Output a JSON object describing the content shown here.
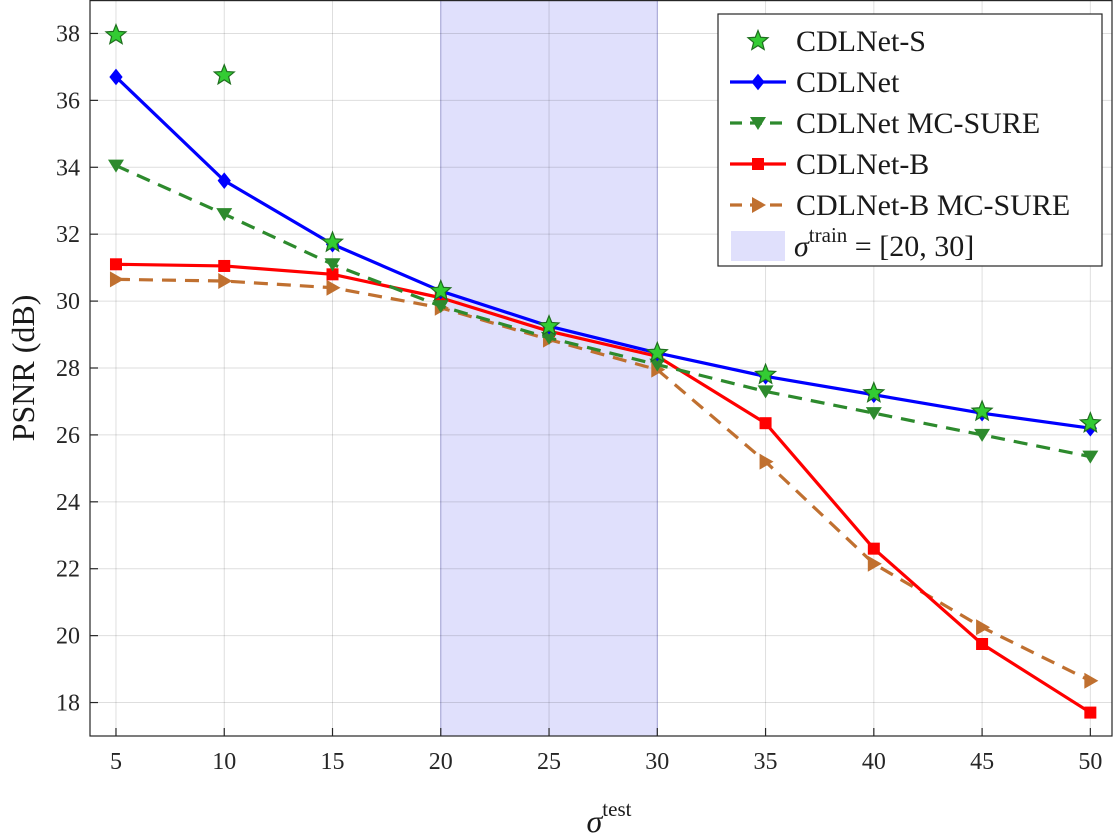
{
  "chart_data": {
    "type": "line",
    "x": [
      5,
      10,
      15,
      20,
      25,
      30,
      35,
      40,
      45,
      50
    ],
    "xlim": [
      3.8,
      51
    ],
    "ylim": [
      17,
      39
    ],
    "xticks": [
      5,
      10,
      15,
      20,
      25,
      30,
      35,
      40,
      45,
      50
    ],
    "yticks": [
      18,
      20,
      22,
      24,
      26,
      28,
      30,
      32,
      34,
      36,
      38
    ],
    "grid": true,
    "legend_position": "top-right",
    "xlabel": {
      "symbol": "σ",
      "sup": "test"
    },
    "ylabel": "PSNR (dB)",
    "shaded_region": {
      "x_range": [
        20,
        30
      ],
      "color": "#e0e0fc",
      "edge_color": "#b4b4f0",
      "label_symbol": "σ",
      "label_sup": "train",
      "label_rest": " = [20, 30]"
    },
    "series": [
      {
        "name": "CDLNet-S",
        "values": [
          37.95,
          36.75,
          31.75,
          30.3,
          29.25,
          28.45,
          27.8,
          27.25,
          26.7,
          26.35
        ],
        "color": "#33cc33",
        "line": "none",
        "marker": "star"
      },
      {
        "name": "CDLNet",
        "values": [
          36.7,
          33.6,
          31.7,
          30.3,
          29.25,
          28.45,
          27.75,
          27.2,
          26.65,
          26.2
        ],
        "color": "#0000ff",
        "line": "solid",
        "marker": "diamond"
      },
      {
        "name": "CDLNet MC-SURE",
        "values": [
          34.05,
          32.6,
          31.1,
          29.85,
          28.9,
          28.1,
          27.3,
          26.65,
          26.0,
          25.35
        ],
        "color": "#2d8a2d",
        "line": "dashed",
        "marker": "triangle-down"
      },
      {
        "name": "CDLNet-B",
        "values": [
          31.1,
          31.05,
          30.8,
          30.1,
          29.1,
          28.35,
          26.35,
          22.6,
          19.75,
          17.7
        ],
        "color": "#ff0000",
        "line": "solid",
        "marker": "square"
      },
      {
        "name": "CDLNet-B MC-SURE",
        "values": [
          30.65,
          30.6,
          30.4,
          29.8,
          28.85,
          27.95,
          25.2,
          22.15,
          20.25,
          18.65
        ],
        "color": "#c07030",
        "line": "dashed",
        "marker": "triangle-right"
      }
    ]
  }
}
